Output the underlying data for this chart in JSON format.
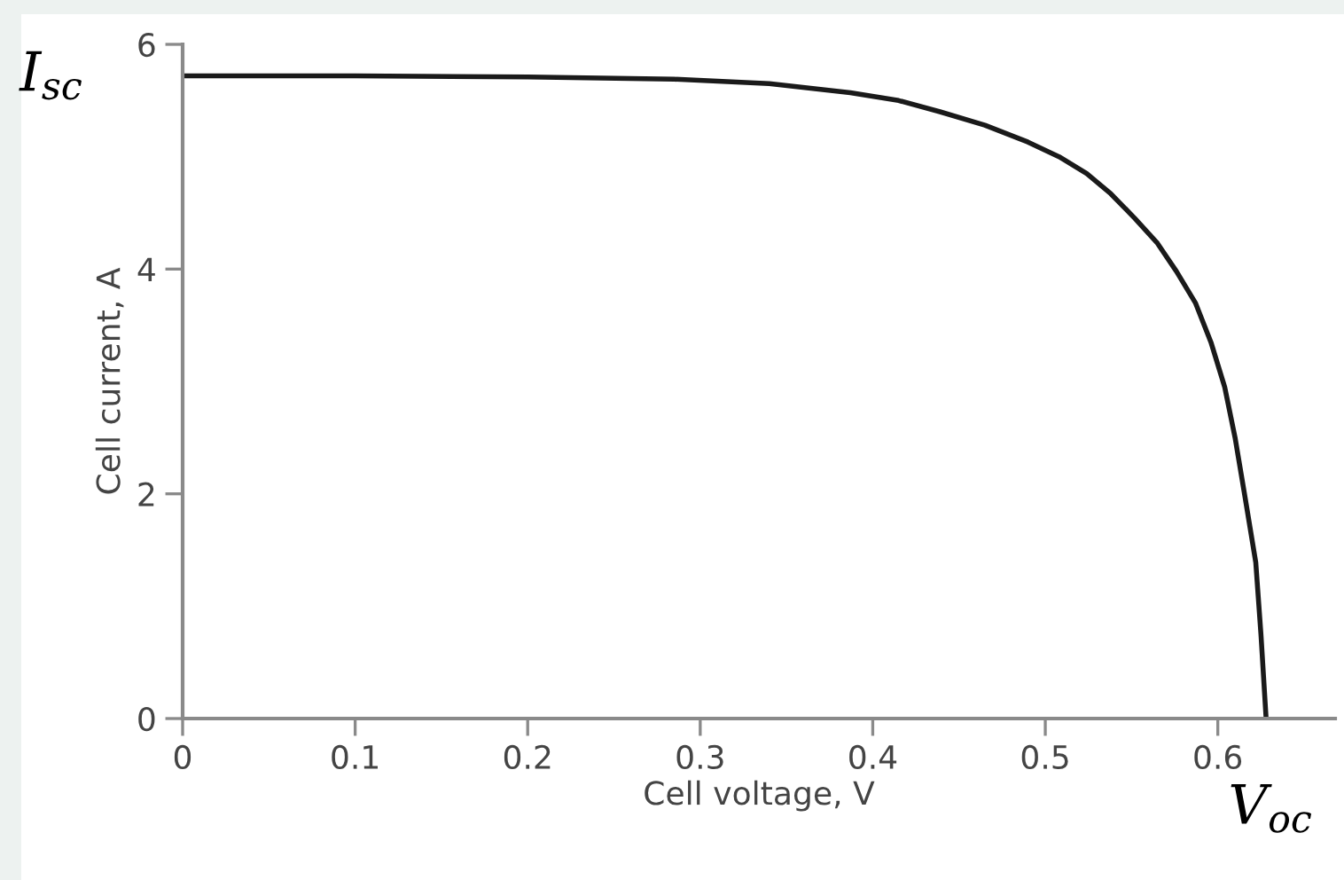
{
  "chart_data": {
    "type": "line",
    "xlabel": "Cell voltage, V",
    "ylabel": "Cell current, A",
    "xlim": [
      0,
      0.668
    ],
    "xticks": [
      0,
      0.1,
      0.2,
      0.3,
      0.4,
      0.5,
      0.6
    ],
    "ylim": [
      0,
      6
    ],
    "yticks": [
      0,
      2,
      4,
      6
    ],
    "grid": false,
    "legend": false,
    "marker": "none",
    "line_style": "solid",
    "series": [
      {
        "color": "#1a1a1a",
        "x": [
          0,
          0.1,
          0.2,
          0.285,
          0.34,
          0.387,
          0.415,
          0.439,
          0.465,
          0.49,
          0.508,
          0.524,
          0.538,
          0.552,
          0.565,
          0.576,
          0.587,
          0.596,
          0.604,
          0.61,
          0.616,
          0.622,
          0.625,
          0.628
        ],
        "values": [
          5.72,
          5.72,
          5.71,
          5.69,
          5.65,
          5.57,
          5.5,
          5.4,
          5.28,
          5.13,
          5.0,
          4.85,
          4.67,
          4.45,
          4.23,
          3.98,
          3.7,
          3.35,
          2.95,
          2.5,
          1.95,
          1.39,
          0.75,
          0
        ]
      }
    ],
    "annotations": [
      {
        "text": "I$_{sc}$",
        "x": 0,
        "y": 5.72
      },
      {
        "text": "V$_{oc}$",
        "x": 0.628,
        "y": 0
      }
    ]
  }
}
